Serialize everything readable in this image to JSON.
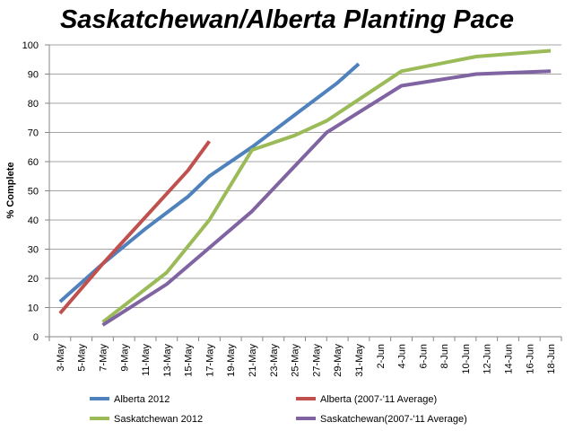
{
  "chart_data": {
    "type": "line",
    "title": "Saskatchewan/Alberta Planting Pace",
    "xlabel": "",
    "ylabel": "% Complete",
    "ylim": [
      0,
      100
    ],
    "yticks": [
      0,
      10,
      20,
      30,
      40,
      50,
      60,
      70,
      80,
      90,
      100
    ],
    "categories": [
      "3-May",
      "5-May",
      "7-May",
      "9-May",
      "11-May",
      "13-May",
      "15-May",
      "17-May",
      "19-May",
      "21-May",
      "23-May",
      "25-May",
      "27-May",
      "29-May",
      "31-May",
      "2-Jun",
      "4-Jun",
      "6-Jun",
      "8-Jun",
      "10-Jun",
      "12-Jun",
      "14-Jun",
      "16-Jun",
      "18-Jun"
    ],
    "grid": "horizontal",
    "legend_position": "bottom",
    "series": [
      {
        "name": "Alberta 2012",
        "color": "#4F81BD",
        "points": [
          [
            "3-May",
            12
          ],
          [
            "7-May",
            25
          ],
          [
            "11-May",
            37
          ],
          [
            "15-May",
            48
          ],
          [
            "17-May",
            55
          ],
          [
            "21-May",
            65
          ],
          [
            "25-May",
            76
          ],
          [
            "29-May",
            87
          ],
          [
            "31-May",
            93.5
          ]
        ]
      },
      {
        "name": "Alberta (2007-'11 Average)",
        "color": "#C0504D",
        "points": [
          [
            "3-May",
            8
          ],
          [
            "7-May",
            25
          ],
          [
            "11-May",
            41
          ],
          [
            "15-May",
            57
          ],
          [
            "17-May",
            67
          ]
        ]
      },
      {
        "name": "Saskatchewan 2012",
        "color": "#9BBB59",
        "points": [
          [
            "7-May",
            5
          ],
          [
            "13-May",
            22
          ],
          [
            "17-May",
            40
          ],
          [
            "21-May",
            64
          ],
          [
            "25-May",
            69
          ],
          [
            "28-May",
            74
          ],
          [
            "4-Jun",
            91
          ],
          [
            "11-Jun",
            96
          ],
          [
            "18-Jun",
            98
          ]
        ]
      },
      {
        "name": "Saskatchewan(2007-'11 Average)",
        "color": "#8064A2",
        "points": [
          [
            "7-May",
            4
          ],
          [
            "13-May",
            18
          ],
          [
            "21-May",
            43
          ],
          [
            "28-May",
            70
          ],
          [
            "4-Jun",
            86
          ],
          [
            "11-Jun",
            90
          ],
          [
            "18-Jun",
            91
          ]
        ]
      }
    ]
  }
}
